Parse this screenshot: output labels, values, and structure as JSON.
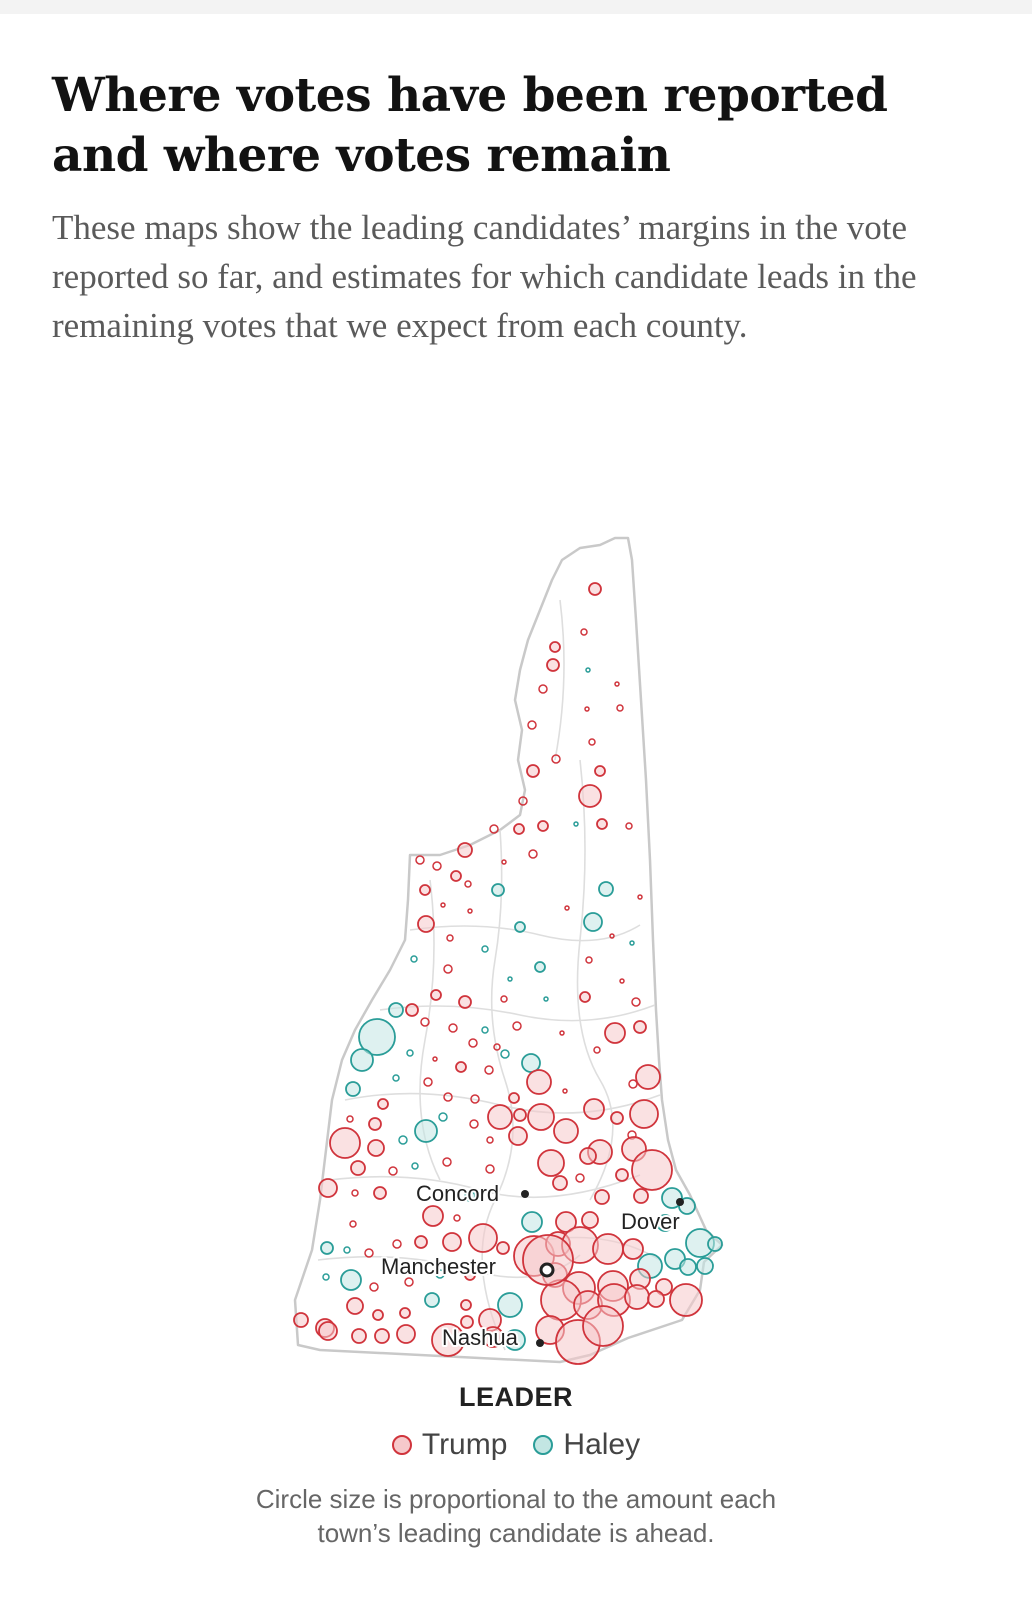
{
  "headline": "Where votes have been reported and where votes remain",
  "dek": "These maps show the leading candidates’ margins in the vote reported so far, and estimates for which candidate leads in the remaining votes that we expect from each county.",
  "map": {
    "region": "New Hampshire",
    "cities": [
      {
        "name": "Concord"
      },
      {
        "name": "Dover"
      },
      {
        "name": "Manchester"
      },
      {
        "name": "Nashua"
      }
    ]
  },
  "legend": {
    "title": "LEADER",
    "items": [
      {
        "label": "Trump",
        "color": "#d0343c",
        "fill": "#f6c9cb"
      },
      {
        "label": "Haley",
        "color": "#2a9d98",
        "fill": "#c3e6e3"
      }
    ]
  },
  "note": {
    "line1": "Circle size is proportional to the amount each",
    "line2": "town’s leading candidate is ahead."
  }
}
